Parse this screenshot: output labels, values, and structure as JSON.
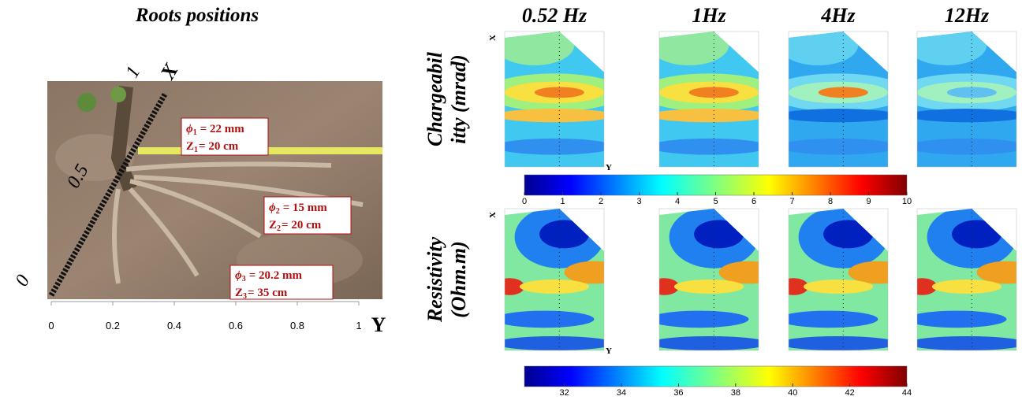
{
  "photo_panel": {
    "title": "Roots positions",
    "x_axis": {
      "label": "Y",
      "lim": [
        0,
        1
      ],
      "ticks": [
        0,
        0.2,
        0.4,
        0.6,
        0.8,
        1
      ]
    },
    "diagonal_axis": {
      "label": "X",
      "lim": [
        0,
        1
      ],
      "ticks": [
        0,
        0.5,
        1
      ]
    },
    "roots": [
      {
        "phi": "ϕ",
        "phi_index": "1",
        "diameter": "= 22 mm",
        "z": "Z",
        "z_index": "1",
        "depth": "= 20 cm"
      },
      {
        "phi": "ϕ",
        "phi_index": "2",
        "diameter": "= 15 mm",
        "z": "Z",
        "z_index": "2",
        "depth": "= 20 cm"
      },
      {
        "phi": "ϕ",
        "phi_index": "3",
        "diameter": "= 20.2 mm",
        "z": "Z",
        "z_index": "3",
        "depth": "= 35 cm"
      }
    ]
  },
  "maps_panel": {
    "frequencies": [
      "0.52 Hz",
      "1Hz",
      "4Hz",
      "12Hz"
    ],
    "rows": [
      {
        "label_lines": [
          "Chargeabil",
          "itty (mrad)"
        ],
        "map_axis_labels": [
          "X",
          "Y"
        ],
        "colorbar": {
          "lim": [
            0,
            10
          ],
          "ticks": [
            0,
            1,
            2,
            3,
            4,
            5,
            6,
            7,
            8,
            9,
            10
          ]
        }
      },
      {
        "label_lines": [
          "Resistivity",
          "(Ohm.m)"
        ],
        "map_axis_labels": [
          "X",
          "Y"
        ],
        "colorbar": {
          "lim": [
            30.6,
            44
          ],
          "ticks": [
            32,
            34,
            36,
            38,
            40,
            42,
            44
          ]
        }
      }
    ]
  }
}
